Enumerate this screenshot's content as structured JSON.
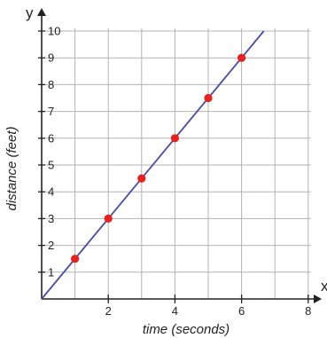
{
  "chart_data": {
    "type": "scatter",
    "xlabel": "time (seconds)",
    "ylabel": "distance (feet)",
    "x_axis_letter": "x",
    "y_axis_letter": "y",
    "xlim": [
      0,
      8
    ],
    "ylim": [
      0,
      10
    ],
    "x_ticks": [
      2,
      4,
      6,
      8
    ],
    "y_ticks": [
      1,
      2,
      3,
      4,
      5,
      6,
      7,
      8,
      9,
      10
    ],
    "grid": true,
    "points": [
      {
        "x": 1,
        "y": 1.5
      },
      {
        "x": 2,
        "y": 3
      },
      {
        "x": 3,
        "y": 4.5
      },
      {
        "x": 4,
        "y": 6
      },
      {
        "x": 5,
        "y": 7.5
      },
      {
        "x": 6,
        "y": 9
      }
    ],
    "trend_line": {
      "slope": 1.5,
      "intercept": 0
    },
    "colors": {
      "line": "#4a4aa8",
      "point": "#e8201e",
      "grid": "#b3b3b3",
      "axis": "#222222"
    }
  }
}
